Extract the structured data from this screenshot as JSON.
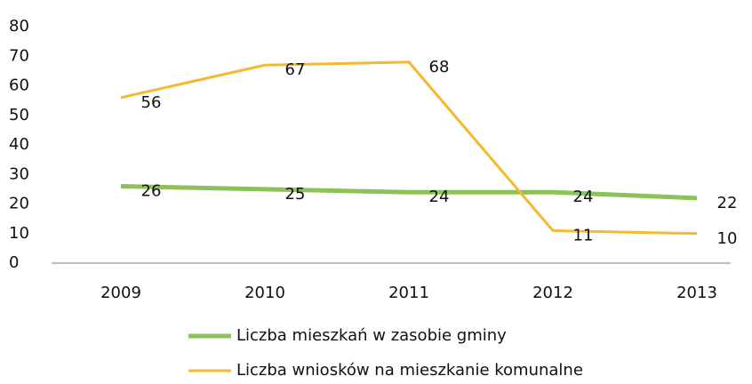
{
  "chart_data": {
    "type": "line",
    "categories": [
      "2009",
      "2010",
      "2011",
      "2012",
      "2013"
    ],
    "series": [
      {
        "name": "Liczba mieszkań w zasobie gminy",
        "color": "#8dc15a",
        "values": [
          26,
          25,
          24,
          24,
          22
        ]
      },
      {
        "name": "Liczba wniosków na mieszkanie komunalne",
        "color": "#f5b82e",
        "values": [
          56,
          67,
          68,
          11,
          10
        ]
      }
    ],
    "ylim": [
      0,
      80
    ],
    "yticks": [
      0,
      10,
      20,
      30,
      40,
      50,
      60,
      70,
      80
    ],
    "grid": false,
    "legend": "bottom"
  }
}
